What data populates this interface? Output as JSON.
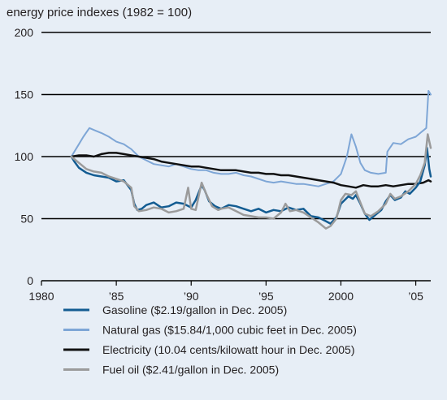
{
  "chart_data": {
    "type": "line",
    "title": "energy price indexes (1982 = 100)",
    "xlabel": "",
    "ylabel": "",
    "xlim": [
      1980,
      2006
    ],
    "ylim": [
      0,
      200
    ],
    "grid": "horizontal",
    "legend_placement": "bottom",
    "y_ticks": [
      {
        "value": 0,
        "label": "0"
      },
      {
        "value": 50,
        "label": "50"
      },
      {
        "value": 100,
        "label": "100"
      },
      {
        "value": 150,
        "label": "150"
      },
      {
        "value": 200,
        "label": "200"
      }
    ],
    "x_ticks": [
      {
        "value": 1980,
        "label": "1980"
      },
      {
        "value": 1985,
        "label": "’85"
      },
      {
        "value": 1990,
        "label": "’90"
      },
      {
        "value": 1995,
        "label": "’95"
      },
      {
        "value": 2000,
        "label": "2000"
      },
      {
        "value": 2005,
        "label": "’05"
      }
    ],
    "series": [
      {
        "name": "Natural gas ($15.84/1,000 cubic feet in Dec. 2005)",
        "color": "#7ea6d6",
        "width": 2,
        "x": [
          1982.0,
          1982.5,
          1982.8,
          1983.2,
          1983.6,
          1984.0,
          1984.5,
          1985.0,
          1985.5,
          1986.0,
          1986.5,
          1987.0,
          1987.5,
          1988.0,
          1988.5,
          1989.0,
          1989.5,
          1990.0,
          1990.5,
          1991.0,
          1991.5,
          1992.0,
          1992.5,
          1993.0,
          1993.5,
          1994.0,
          1994.5,
          1995.0,
          1995.5,
          1996.0,
          1996.5,
          1997.0,
          1997.5,
          1998.0,
          1998.5,
          1999.0,
          1999.5,
          2000.0,
          2000.4,
          2000.7,
          2001.0,
          2001.3,
          2001.6,
          2002.0,
          2002.5,
          2003.0,
          2003.1,
          2003.5,
          2004.0,
          2004.5,
          2005.0,
          2005.4,
          2005.7,
          2005.85,
          2006.0
        ],
        "values": [
          100,
          110,
          116,
          123,
          121,
          119,
          116,
          112,
          110,
          106,
          100,
          97,
          94,
          93,
          92,
          94,
          92,
          90,
          89,
          89,
          87,
          86,
          86,
          87,
          85,
          84,
          82,
          80,
          79,
          80,
          79,
          78,
          78,
          77,
          76,
          78,
          80,
          86,
          100,
          118,
          108,
          95,
          89,
          87,
          86,
          87,
          104,
          111,
          110,
          114,
          116,
          120,
          123,
          153,
          150
        ]
      },
      {
        "name": "Electricity (10.04 cents/kilowatt hour in Dec. 2005)",
        "color": "#111111",
        "width": 2.5,
        "x": [
          1982.0,
          1982.5,
          1983.0,
          1983.5,
          1984.0,
          1984.5,
          1985.0,
          1985.5,
          1986.0,
          1986.5,
          1987.0,
          1987.5,
          1988.0,
          1988.5,
          1989.0,
          1989.5,
          1990.0,
          1990.5,
          1991.0,
          1991.5,
          1992.0,
          1992.5,
          1993.0,
          1993.5,
          1994.0,
          1994.5,
          1995.0,
          1995.5,
          1996.0,
          1996.5,
          1997.0,
          1997.5,
          1998.0,
          1998.5,
          1999.0,
          1999.5,
          2000.0,
          2000.5,
          2001.0,
          2001.5,
          2002.0,
          2002.5,
          2003.0,
          2003.5,
          2004.0,
          2004.5,
          2005.0,
          2005.5,
          2005.85,
          2006.0
        ],
        "values": [
          100,
          101,
          101,
          100,
          102,
          103,
          103,
          102,
          101,
          100,
          99,
          98,
          96,
          95,
          94,
          93,
          92,
          92,
          91,
          90,
          89,
          89,
          89,
          88,
          87,
          87,
          86,
          86,
          85,
          85,
          84,
          83,
          82,
          81,
          80,
          79,
          77,
          76,
          75,
          77,
          76,
          76,
          77,
          76,
          77,
          78,
          78,
          79,
          81,
          80
        ]
      },
      {
        "name": "Gasoline ($2.19/gallon in Dec. 2005)",
        "color": "#135c92",
        "width": 2.5,
        "x": [
          1982.0,
          1982.2,
          1982.5,
          1983.0,
          1983.5,
          1984.0,
          1984.5,
          1985.0,
          1985.5,
          1986.0,
          1986.2,
          1986.4,
          1986.7,
          1987.0,
          1987.5,
          1988.0,
          1988.5,
          1989.0,
          1989.5,
          1990.0,
          1990.3,
          1990.7,
          1990.9,
          1991.2,
          1991.6,
          1992.0,
          1992.5,
          1993.0,
          1993.5,
          1994.0,
          1994.5,
          1995.0,
          1995.5,
          1996.0,
          1996.5,
          1997.0,
          1997.5,
          1998.0,
          1998.5,
          1999.0,
          1999.3,
          1999.7,
          2000.0,
          2000.5,
          2000.8,
          2001.0,
          2001.3,
          2001.6,
          2001.9,
          2002.3,
          2002.7,
          2003.0,
          2003.3,
          2003.6,
          2004.0,
          2004.3,
          2004.6,
          2005.0,
          2005.3,
          2005.6,
          2005.75,
          2005.9,
          2006.0
        ],
        "values": [
          100,
          96,
          91,
          87,
          85,
          84,
          83,
          80,
          81,
          73,
          62,
          57,
          58,
          61,
          63,
          59,
          60,
          63,
          62,
          59,
          65,
          77,
          73,
          64,
          60,
          58,
          61,
          60,
          58,
          56,
          58,
          55,
          57,
          56,
          59,
          57,
          58,
          52,
          51,
          48,
          46,
          51,
          62,
          68,
          66,
          69,
          62,
          54,
          49,
          53,
          57,
          64,
          69,
          65,
          67,
          72,
          70,
          75,
          80,
          93,
          107,
          90,
          84
        ]
      },
      {
        "name": "Fuel oil ($2.41/gallon in Dec. 2005)",
        "color": "#9b9b9b",
        "width": 2.5,
        "x": [
          1982.0,
          1982.5,
          1983.0,
          1983.5,
          1984.0,
          1984.5,
          1985.0,
          1985.5,
          1986.0,
          1986.2,
          1986.5,
          1987.0,
          1987.5,
          1988.0,
          1988.5,
          1989.0,
          1989.5,
          1989.8,
          1990.0,
          1990.3,
          1990.7,
          1991.0,
          1991.4,
          1991.8,
          1992.0,
          1992.5,
          1993.0,
          1993.5,
          1994.0,
          1994.5,
          1995.0,
          1995.5,
          1996.0,
          1996.3,
          1996.6,
          1997.0,
          1997.5,
          1998.0,
          1998.5,
          1999.0,
          1999.3,
          1999.7,
          2000.0,
          2000.3,
          2000.7,
          2001.0,
          2001.3,
          2001.6,
          2002.0,
          2002.5,
          2003.0,
          2003.3,
          2003.6,
          2004.0,
          2004.5,
          2005.0,
          2005.3,
          2005.6,
          2005.8,
          2006.0
        ],
        "values": [
          100,
          95,
          90,
          88,
          87,
          84,
          82,
          80,
          75,
          60,
          56,
          57,
          59,
          58,
          55,
          56,
          58,
          75,
          58,
          57,
          79,
          70,
          60,
          57,
          58,
          59,
          56,
          53,
          52,
          51,
          51,
          50,
          55,
          62,
          56,
          57,
          55,
          51,
          47,
          42,
          44,
          50,
          65,
          70,
          69,
          72,
          63,
          54,
          52,
          56,
          62,
          70,
          66,
          68,
          72,
          78,
          85,
          95,
          118,
          107
        ]
      }
    ]
  }
}
